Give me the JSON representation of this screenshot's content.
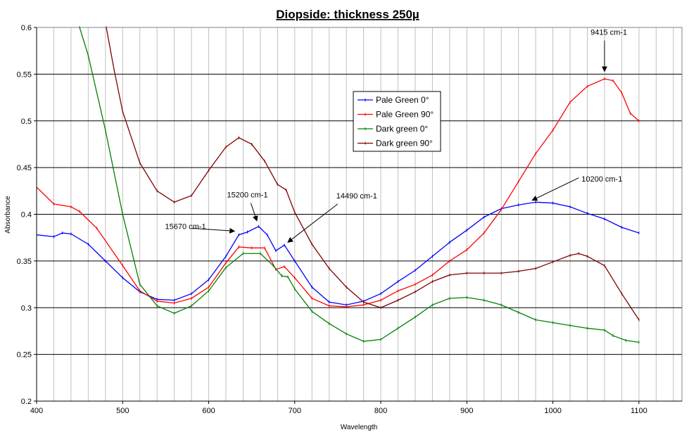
{
  "chart_data": {
    "type": "line",
    "title": "Diopside: thickness 250µ",
    "xlabel": "Wavelength",
    "ylabel": "Absorbance",
    "xlim": [
      400,
      1150
    ],
    "ylim": [
      0.2,
      0.6
    ],
    "x_ticks": [
      400,
      500,
      600,
      700,
      800,
      900,
      1000,
      1100
    ],
    "x_tick_labels": [
      "400",
      "500",
      "600",
      "700",
      "800",
      "900",
      "1000",
      "1100"
    ],
    "y_ticks": [
      0.2,
      0.25,
      0.3,
      0.35,
      0.4,
      0.45,
      0.5,
      0.55,
      0.6
    ],
    "y_tick_labels": [
      "0.2",
      "0.25",
      "0.3",
      "0.35",
      "0.4",
      "0.45",
      "0.5",
      "0.55",
      "0.6"
    ],
    "grid": {
      "x_minor_step": 20,
      "y_major_step": 0.05
    },
    "legend_position": "center-top",
    "series": [
      {
        "name": "Pale Green 0°",
        "color": "#0000ff",
        "x": [
          400,
          420,
          430,
          440,
          460,
          480,
          500,
          520,
          540,
          560,
          580,
          600,
          620,
          635,
          645,
          658,
          668,
          678,
          688,
          700,
          720,
          740,
          760,
          780,
          800,
          820,
          840,
          860,
          880,
          900,
          920,
          940,
          960,
          980,
          1000,
          1020,
          1040,
          1060,
          1080,
          1100
        ],
        "y": [
          0.378,
          0.376,
          0.38,
          0.379,
          0.368,
          0.35,
          0.332,
          0.317,
          0.309,
          0.308,
          0.315,
          0.33,
          0.355,
          0.378,
          0.381,
          0.387,
          0.378,
          0.361,
          0.367,
          0.35,
          0.322,
          0.306,
          0.303,
          0.307,
          0.315,
          0.328,
          0.34,
          0.355,
          0.37,
          0.383,
          0.397,
          0.406,
          0.41,
          0.413,
          0.412,
          0.408,
          0.401,
          0.395,
          0.386,
          0.38
        ]
      },
      {
        "name": "Pale Green 90°",
        "color": "#ff0000",
        "x": [
          400,
          420,
          440,
          450,
          470,
          500,
          520,
          540,
          560,
          580,
          600,
          620,
          635,
          650,
          665,
          678,
          688,
          700,
          720,
          740,
          760,
          780,
          800,
          820,
          840,
          860,
          880,
          900,
          920,
          940,
          960,
          980,
          1000,
          1020,
          1040,
          1060,
          1070,
          1080,
          1090,
          1100
        ],
        "y": [
          0.429,
          0.411,
          0.408,
          0.403,
          0.385,
          0.345,
          0.318,
          0.307,
          0.305,
          0.31,
          0.322,
          0.348,
          0.365,
          0.364,
          0.364,
          0.341,
          0.344,
          0.332,
          0.31,
          0.302,
          0.301,
          0.303,
          0.308,
          0.318,
          0.325,
          0.335,
          0.35,
          0.362,
          0.38,
          0.405,
          0.435,
          0.465,
          0.49,
          0.52,
          0.537,
          0.545,
          0.543,
          0.53,
          0.508,
          0.5
        ]
      },
      {
        "name": "Dark green 0°",
        "color": "#008000",
        "x": [
          450,
          460,
          480,
          500,
          520,
          540,
          560,
          580,
          600,
          620,
          640,
          660,
          675,
          685,
          692,
          700,
          720,
          740,
          760,
          780,
          800,
          820,
          840,
          860,
          880,
          900,
          920,
          940,
          960,
          980,
          1000,
          1020,
          1040,
          1060,
          1070,
          1085,
          1100
        ],
        "y": [
          0.6,
          0.57,
          0.49,
          0.4,
          0.325,
          0.302,
          0.294,
          0.302,
          0.318,
          0.343,
          0.358,
          0.358,
          0.345,
          0.334,
          0.333,
          0.32,
          0.296,
          0.283,
          0.272,
          0.264,
          0.266,
          0.278,
          0.29,
          0.303,
          0.31,
          0.311,
          0.308,
          0.303,
          0.295,
          0.287,
          0.284,
          0.281,
          0.278,
          0.276,
          0.27,
          0.265,
          0.263
        ]
      },
      {
        "name": "Dark green 90°",
        "color": "#800000",
        "x": [
          481,
          490,
          500,
          520,
          540,
          560,
          580,
          600,
          620,
          635,
          650,
          665,
          680,
          690,
          700,
          720,
          740,
          760,
          780,
          800,
          820,
          840,
          860,
          880,
          900,
          920,
          940,
          960,
          980,
          1000,
          1020,
          1030,
          1040,
          1060,
          1080,
          1100
        ],
        "y": [
          0.6,
          0.555,
          0.51,
          0.455,
          0.425,
          0.413,
          0.42,
          0.447,
          0.472,
          0.482,
          0.475,
          0.457,
          0.432,
          0.426,
          0.402,
          0.368,
          0.342,
          0.322,
          0.306,
          0.3,
          0.308,
          0.317,
          0.328,
          0.335,
          0.337,
          0.337,
          0.337,
          0.339,
          0.342,
          0.349,
          0.356,
          0.358,
          0.355,
          0.345,
          0.315,
          0.287
        ]
      }
    ],
    "annotations": [
      {
        "text": "9415 cm-1",
        "text_at": [
          1065,
          0.592
        ],
        "arrow_from": [
          1060,
          0.586
        ],
        "arrow_to": [
          1060,
          0.553
        ]
      },
      {
        "text": "10200 cm-1",
        "text_at": [
          1057,
          0.435
        ],
        "arrow_from": [
          1030,
          0.439
        ],
        "arrow_to": [
          976,
          0.415
        ]
      },
      {
        "text": "15670 cm-1",
        "text_at": [
          573,
          0.384
        ],
        "arrow_from": [
          580,
          0.385
        ],
        "arrow_to": [
          630,
          0.382
        ]
      },
      {
        "text": "15200 cm-1",
        "text_at": [
          645,
          0.418
        ],
        "arrow_from": [
          649,
          0.412
        ],
        "arrow_to": [
          656,
          0.393
        ]
      },
      {
        "text": "14490 cm-1",
        "text_at": [
          772,
          0.417
        ],
        "arrow_from": [
          750,
          0.411
        ],
        "arrow_to": [
          692,
          0.37
        ]
      }
    ]
  }
}
